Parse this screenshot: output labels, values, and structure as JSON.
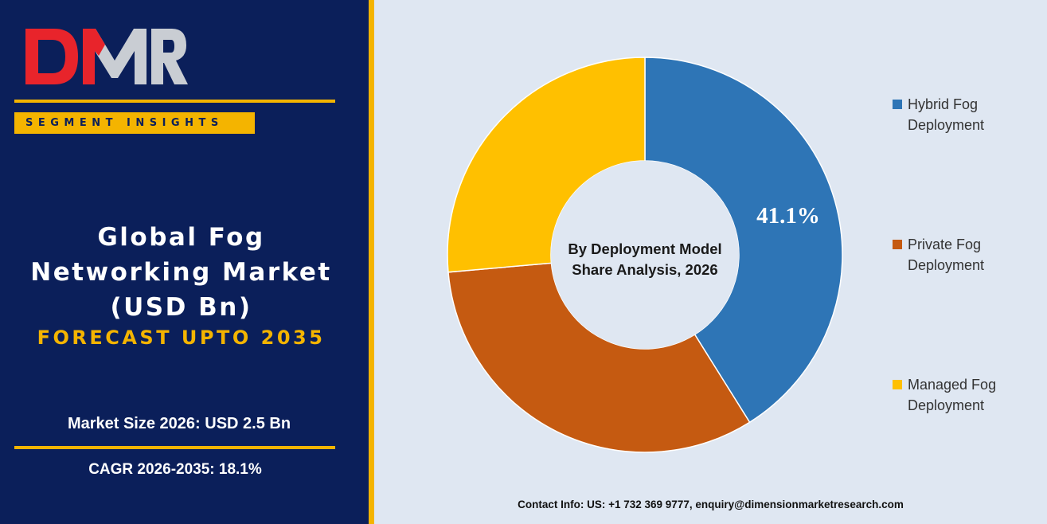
{
  "brand": {
    "logo_text": "DMR",
    "tagline": "SEGMENT INSIGHTS"
  },
  "report": {
    "title_lines": [
      "Global Fog",
      "Networking Market",
      "(USD Bn)"
    ],
    "forecast": "FORECAST UPTO 2035",
    "market_size": "Market Size 2026: USD 2.5 Bn",
    "cagr": "CAGR 2026-2035: 18.1%"
  },
  "chart_data": {
    "type": "pie",
    "title": "By Deployment Model Share Analysis, 2026",
    "title_lines": [
      "By Deployment Model",
      "Share Analysis, 2026"
    ],
    "donut": true,
    "legend_position": "right",
    "series": [
      {
        "name": "Hybrid Fog Deployment",
        "name_lines": [
          "Hybrid Fog",
          "Deployment"
        ],
        "value": 41.1,
        "color": "#2e75b6",
        "label": "41.1%"
      },
      {
        "name": "Private Fog Deployment",
        "name_lines": [
          "Private Fog",
          "Deployment"
        ],
        "value": 32.5,
        "color": "#c55a11",
        "label": ""
      },
      {
        "name": "Managed Fog Deployment",
        "name_lines": [
          "Managed Fog",
          "Deployment"
        ],
        "value": 26.4,
        "color": "#ffc000",
        "label": ""
      }
    ]
  },
  "contact": "Contact Info: US: +1 732 369 9777, enquiry@dimensionmarketresearch.com",
  "colors": {
    "panel_bg": "#0b1f5a",
    "accent": "#f4b400",
    "chart_bg": "#dfe7f2"
  }
}
